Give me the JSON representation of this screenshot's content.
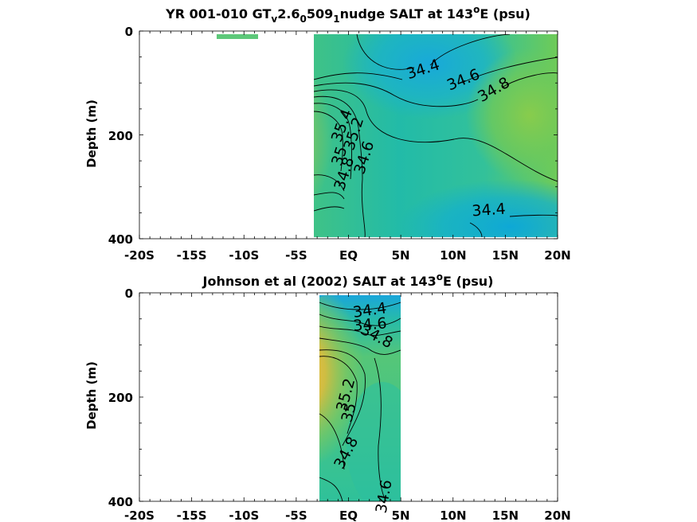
{
  "chart_data": [
    {
      "type": "contour",
      "title": {
        "pre": "YR 001-010 GT",
        "sub1": "v",
        "mid1": "2.6",
        "sub2": "0",
        "mid2": "509",
        "sub3": "1",
        "post": "nudge SALT at 143",
        "sup": "o",
        "tail": "E (psu)"
      },
      "ylabel": "Depth (m)",
      "xlim": [
        -20,
        20
      ],
      "ylim": [
        0,
        400
      ],
      "yticks": [
        "0",
        "200",
        "400"
      ],
      "xticks": [
        "-20S",
        "-15S",
        "-10S",
        "-5S",
        "EQ",
        "5N",
        "10N",
        "15N",
        "20N"
      ],
      "data_extent": {
        "lat": [
          -3.5,
          20
        ],
        "depth": [
          5,
          395
        ]
      },
      "isolated_patch": {
        "lat": [
          -12,
          -8
        ],
        "depth": [
          5,
          15
        ],
        "color": "#5dc87a"
      },
      "contour_levels": [
        "34.4",
        "34.6",
        "34.8",
        "35",
        "35.2",
        "35.4"
      ],
      "contour_labels": [
        {
          "text": "34.4",
          "lat": 6.5,
          "depth": 80
        },
        {
          "text": "34.6",
          "lat": 10.5,
          "depth": 95
        },
        {
          "text": "34.8",
          "lat": 13.5,
          "depth": 110
        },
        {
          "text": "35.4",
          "lat": -1.3,
          "depth": 175
        },
        {
          "text": "35.2",
          "lat": 0.5,
          "depth": 185
        },
        {
          "text": "35",
          "lat": -0.5,
          "depth": 215
        },
        {
          "text": "34.8",
          "lat": -0.2,
          "depth": 255
        },
        {
          "text": "34.6",
          "lat": 1.9,
          "depth": 245
        },
        {
          "text": "34.4",
          "lat": 13,
          "depth": 345
        }
      ]
    },
    {
      "type": "contour",
      "title": {
        "pre": "Johnson et al (2002) SALT at 143",
        "sup": "o",
        "tail": "E (psu)"
      },
      "ylabel": "Depth (m)",
      "xlim": [
        -20,
        20
      ],
      "ylim": [
        0,
        400
      ],
      "yticks": [
        "0",
        "200",
        "400"
      ],
      "xticks": [
        "-20S",
        "-15S",
        "-10S",
        "-5S",
        "EQ",
        "5N",
        "10N",
        "15N",
        "20N"
      ],
      "data_extent": {
        "lat": [
          -3,
          5
        ],
        "depth": [
          5,
          400
        ]
      },
      "contour_levels": [
        "34.4",
        "34.6",
        "34.8",
        "35",
        "35.2"
      ],
      "contour_labels": [
        {
          "text": "34.4",
          "lat": 0.3,
          "depth": 35
        },
        {
          "text": "34.6",
          "lat": 0.3,
          "depth": 60
        },
        {
          "text": "34.8",
          "lat": 0.7,
          "depth": 85
        },
        {
          "text": "35.2",
          "lat": -0.3,
          "depth": 205
        },
        {
          "text": "35",
          "lat": -0.3,
          "depth": 240
        },
        {
          "text": "34.8",
          "lat": -1.0,
          "depth": 305
        },
        {
          "text": "34.6",
          "lat": 3.5,
          "depth": 385
        }
      ]
    }
  ]
}
